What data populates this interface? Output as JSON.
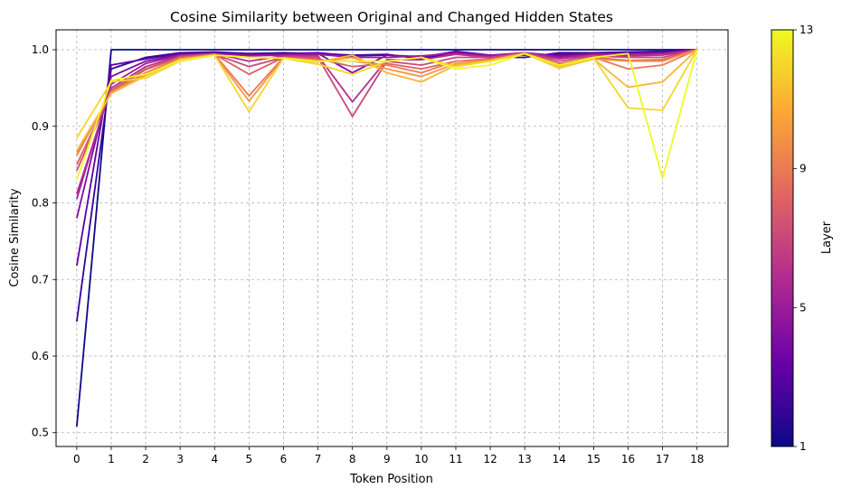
{
  "chart_data": {
    "type": "line",
    "title": "Cosine Similarity between Original and Changed Hidden States",
    "xlabel": "Token Position",
    "ylabel": "Cosine Similarity",
    "colorbar_label": "Layer",
    "colorbar_ticks": [
      "1",
      "5",
      "9",
      "13"
    ],
    "colormap": [
      "#0d0887",
      "#6a00a8",
      "#b12a90",
      "#e16462",
      "#fca636",
      "#f0f921"
    ],
    "xlim": [
      -0.6,
      18.9
    ],
    "ylim": [
      0.482,
      1.026
    ],
    "x": [
      0,
      1,
      2,
      3,
      4,
      5,
      6,
      7,
      8,
      9,
      10,
      11,
      12,
      13,
      14,
      15,
      16,
      17,
      18
    ],
    "x_ticks": [
      "0",
      "1",
      "2",
      "3",
      "4",
      "5",
      "6",
      "7",
      "8",
      "9",
      "10",
      "11",
      "12",
      "13",
      "14",
      "15",
      "16",
      "17",
      "18"
    ],
    "y_ticks": [
      "0.5",
      "0.6",
      "0.7",
      "0.8",
      "0.9",
      "1.0"
    ],
    "grid": true,
    "series": [
      {
        "layer": 1,
        "values": [
          0.508,
          1.0,
          1.0,
          1.0,
          1.0,
          1.0,
          1.0,
          1.0,
          1.0,
          1.0,
          1.0,
          1.0,
          1.0,
          1.0,
          1.0,
          1.0,
          1.0,
          1.0,
          1.0
        ]
      },
      {
        "layer": 2,
        "values": [
          0.645,
          0.975,
          0.99,
          0.996,
          0.997,
          0.995,
          0.996,
          0.995,
          0.993,
          0.994,
          0.988,
          0.996,
          0.99,
          0.99,
          0.996,
          0.996,
          0.997,
          0.998,
          1.0
        ]
      },
      {
        "layer": 3,
        "values": [
          0.718,
          0.98,
          0.988,
          0.995,
          0.996,
          0.994,
          0.995,
          0.996,
          0.992,
          0.993,
          0.99,
          0.998,
          0.993,
          0.993,
          0.994,
          0.995,
          0.996,
          0.997,
          1.0
        ]
      },
      {
        "layer": 4,
        "values": [
          0.78,
          0.965,
          0.985,
          0.994,
          0.995,
          0.993,
          0.994,
          0.995,
          0.97,
          0.993,
          0.991,
          0.997,
          0.993,
          0.996,
          0.992,
          0.995,
          0.995,
          0.996,
          1.0
        ]
      },
      {
        "layer": 5,
        "values": [
          0.805,
          0.955,
          0.982,
          0.993,
          0.995,
          0.992,
          0.993,
          0.994,
          0.99,
          0.99,
          0.992,
          0.995,
          0.992,
          0.996,
          0.99,
          0.994,
          0.994,
          0.995,
          1.0
        ]
      },
      {
        "layer": 6,
        "values": [
          0.812,
          0.95,
          0.978,
          0.992,
          0.995,
          0.985,
          0.992,
          0.992,
          0.932,
          0.987,
          0.987,
          0.994,
          0.99,
          0.996,
          0.988,
          0.993,
          0.992,
          0.993,
          1.0
        ]
      },
      {
        "layer": 7,
        "values": [
          0.842,
          0.947,
          0.975,
          0.991,
          0.994,
          0.978,
          0.99,
          0.99,
          0.913,
          0.985,
          0.98,
          0.99,
          0.99,
          0.996,
          0.985,
          0.992,
          0.99,
          0.99,
          1.0
        ]
      },
      {
        "layer": 8,
        "values": [
          0.85,
          0.946,
          0.974,
          0.99,
          0.994,
          0.968,
          0.99,
          0.988,
          0.978,
          0.982,
          0.975,
          0.985,
          0.988,
          0.995,
          0.982,
          0.99,
          0.986,
          0.987,
          1.0
        ]
      },
      {
        "layer": 9,
        "values": [
          0.862,
          0.945,
          0.97,
          0.989,
          0.994,
          0.94,
          0.99,
          0.986,
          0.985,
          0.98,
          0.97,
          0.985,
          0.987,
          0.995,
          0.98,
          0.99,
          0.975,
          0.98,
          1.0
        ]
      },
      {
        "layer": 10,
        "values": [
          0.866,
          0.944,
          0.968,
          0.988,
          0.993,
          0.933,
          0.989,
          0.985,
          0.99,
          0.975,
          0.965,
          0.982,
          0.986,
          0.995,
          0.978,
          0.988,
          0.985,
          0.985,
          1.0
        ]
      },
      {
        "layer": 11,
        "values": [
          0.868,
          0.943,
          0.966,
          0.987,
          0.993,
          0.99,
          0.989,
          0.984,
          0.993,
          0.97,
          0.958,
          0.98,
          0.986,
          0.995,
          0.976,
          0.988,
          0.951,
          0.958,
          1.0
        ]
      },
      {
        "layer": 12,
        "values": [
          0.885,
          0.958,
          0.963,
          0.985,
          0.993,
          0.919,
          0.989,
          0.981,
          0.968,
          0.985,
          0.99,
          0.978,
          0.985,
          0.995,
          0.977,
          0.989,
          0.924,
          0.921,
          1.0
        ]
      },
      {
        "layer": 13,
        "values": [
          0.83,
          0.96,
          0.968,
          0.986,
          0.993,
          0.99,
          0.989,
          0.985,
          0.985,
          0.985,
          0.99,
          0.975,
          0.98,
          0.995,
          0.98,
          0.99,
          0.995,
          0.832,
          1.0
        ]
      }
    ]
  }
}
